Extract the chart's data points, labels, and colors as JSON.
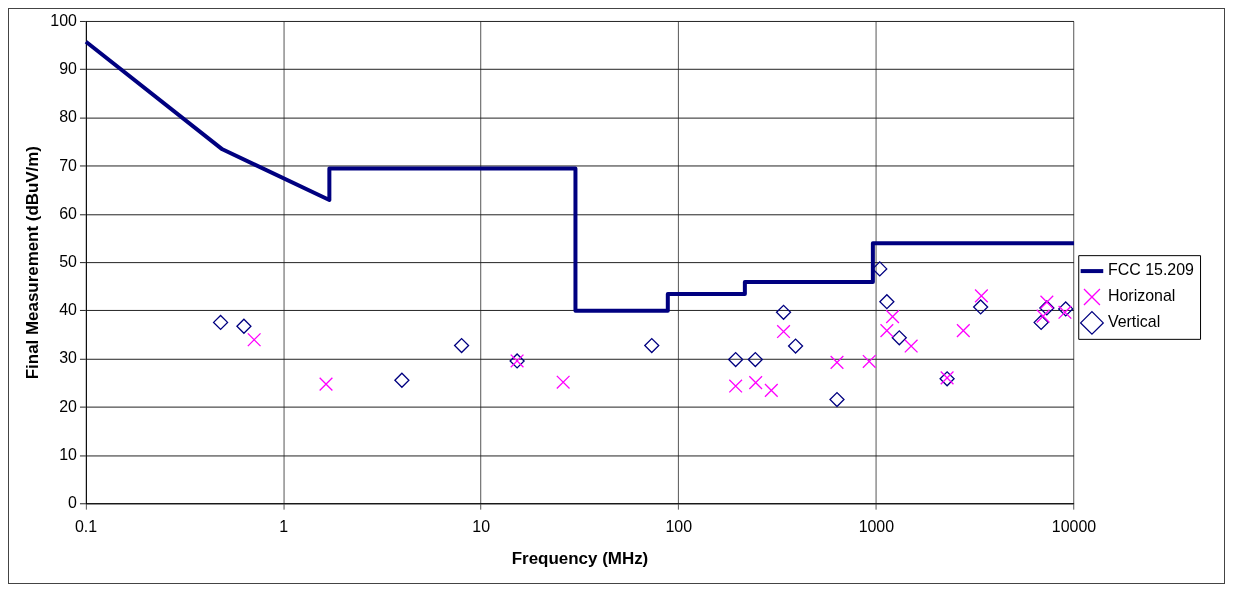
{
  "chart_data": {
    "type": "scatter",
    "xlabel": "Frequency (MHz)",
    "ylabel": "Final Measurement (dBuV/m)",
    "log": "x",
    "xlim": [
      0.1,
      10000
    ],
    "xticks": [
      0.1,
      1,
      10,
      100,
      1000,
      10000
    ],
    "ylim": [
      0,
      100
    ],
    "yticks": [
      0,
      10,
      20,
      30,
      40,
      50,
      60,
      70,
      80,
      90,
      100
    ],
    "grid": true,
    "legend": "right",
    "series": [
      {
        "name": "FCC 15.209",
        "type": "line",
        "marker": "none",
        "color": "#000080",
        "x": [
          0.1,
          0.49,
          1.705,
          1.705,
          30,
          30,
          88,
          88,
          216,
          216,
          960,
          960,
          10000
        ],
        "values": [
          95.8,
          73.5,
          63,
          69.5,
          69.5,
          40,
          40,
          43.5,
          43.5,
          46,
          46,
          54,
          54
        ]
      },
      {
        "name": "Horizonal",
        "marker": "cross",
        "color": "#ff00ff",
        "x": [
          0.71,
          1.64,
          15.2,
          26,
          194,
          245,
          294,
          339,
          632,
          920,
          1130,
          1208,
          1500,
          2280,
          2754,
          3400,
          6980,
          7290,
          9000
        ],
        "values": [
          34,
          24.8,
          29.6,
          25.2,
          24.4,
          25.1,
          23.5,
          35.7,
          29.3,
          29.5,
          35.9,
          38.8,
          32.7,
          26.1,
          35.9,
          43.1,
          38.9,
          41.8,
          39.7
        ]
      },
      {
        "name": "Vertical",
        "marker": "diamond",
        "color": "#000080",
        "x": [
          0.48,
          0.63,
          3.97,
          7.96,
          15.2,
          73,
          194,
          244,
          339,
          390,
          632,
          1040,
          1130,
          1306,
          2280,
          3370,
          6820,
          7290,
          9080
        ],
        "values": [
          37.6,
          36.8,
          25.6,
          32.8,
          29.6,
          32.8,
          29.9,
          29.9,
          39.7,
          32.7,
          21.6,
          48.7,
          41.9,
          34.4,
          25.9,
          40.8,
          37.6,
          40.6,
          40.4
        ]
      }
    ]
  }
}
